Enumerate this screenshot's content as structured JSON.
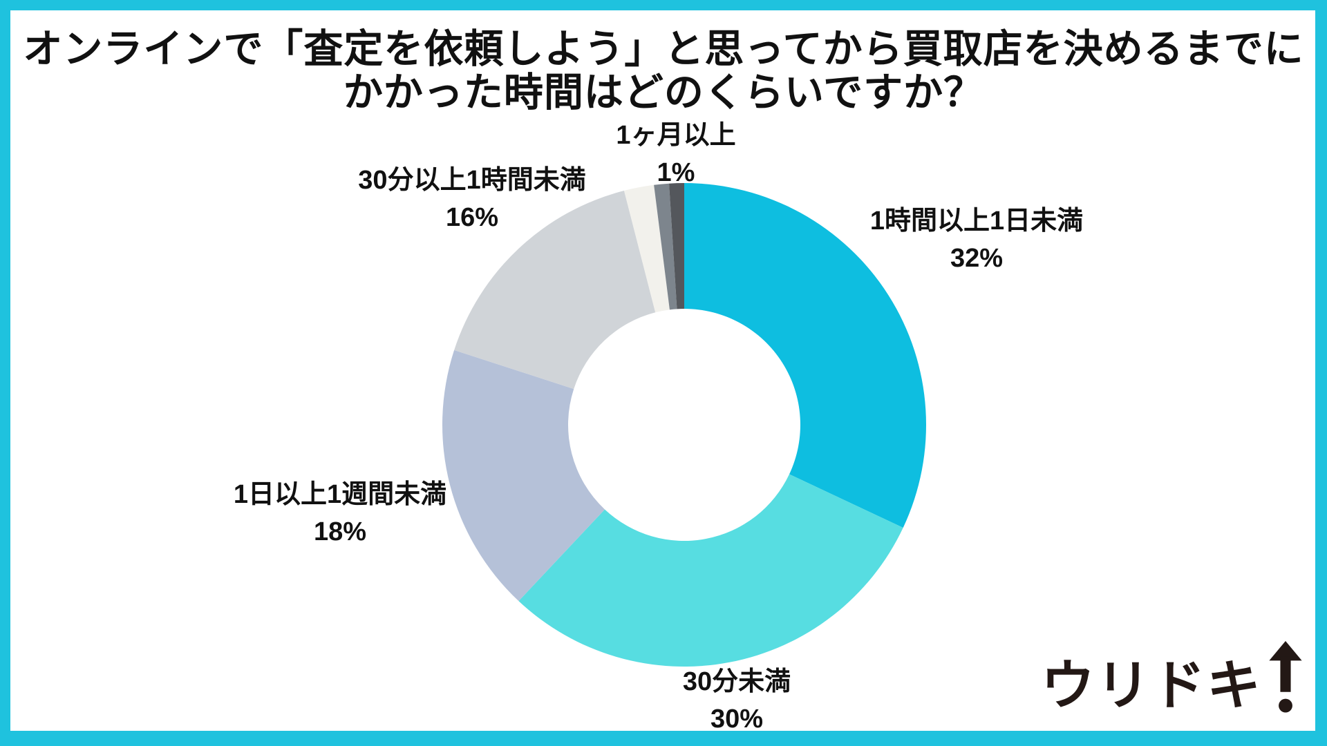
{
  "frame": {
    "border_color": "#1fc2de",
    "background": "#ffffff"
  },
  "title": {
    "line1": "オンラインで「査定を依頼しよう」と思ってから買取店を決めるまでに",
    "line2": "かかった時間はどのくらいですか？"
  },
  "chart_data": {
    "type": "pie",
    "style": "donut",
    "title": "オンラインで「査定を依頼しよう」と思ってから買取店を決めるまでにかかった時間はどのくらいですか？",
    "unit": "%",
    "total": 100,
    "start_angle_deg": 0,
    "direction": "clockwise",
    "donut_hole_ratio": 0.48,
    "legend_position": "outside-labels",
    "segments": [
      {
        "label": "1時間以上1日未満",
        "value": 32,
        "color": "#0ebee0",
        "label_visible": true
      },
      {
        "label": "30分未満",
        "value": 30,
        "color": "#57dde1",
        "label_visible": true
      },
      {
        "label": "1日以上1週間未満",
        "value": 18,
        "color": "#b5c1d8",
        "label_visible": true
      },
      {
        "label": "30分以上1時間未満",
        "value": 16,
        "color": "#d0d4d8",
        "label_visible": true
      },
      {
        "label": "",
        "value": 2,
        "color": "#f2f1ec",
        "label_visible": false
      },
      {
        "label": "",
        "value": 1,
        "color": "#7d858d",
        "label_visible": false
      },
      {
        "label": "1ヶ月以上",
        "value": 1,
        "color": "#54575c",
        "label_visible": true
      }
    ]
  },
  "logo": {
    "text": "ウリドキ",
    "icon": "up-arrow-exclamation-icon",
    "color": "#231815"
  }
}
